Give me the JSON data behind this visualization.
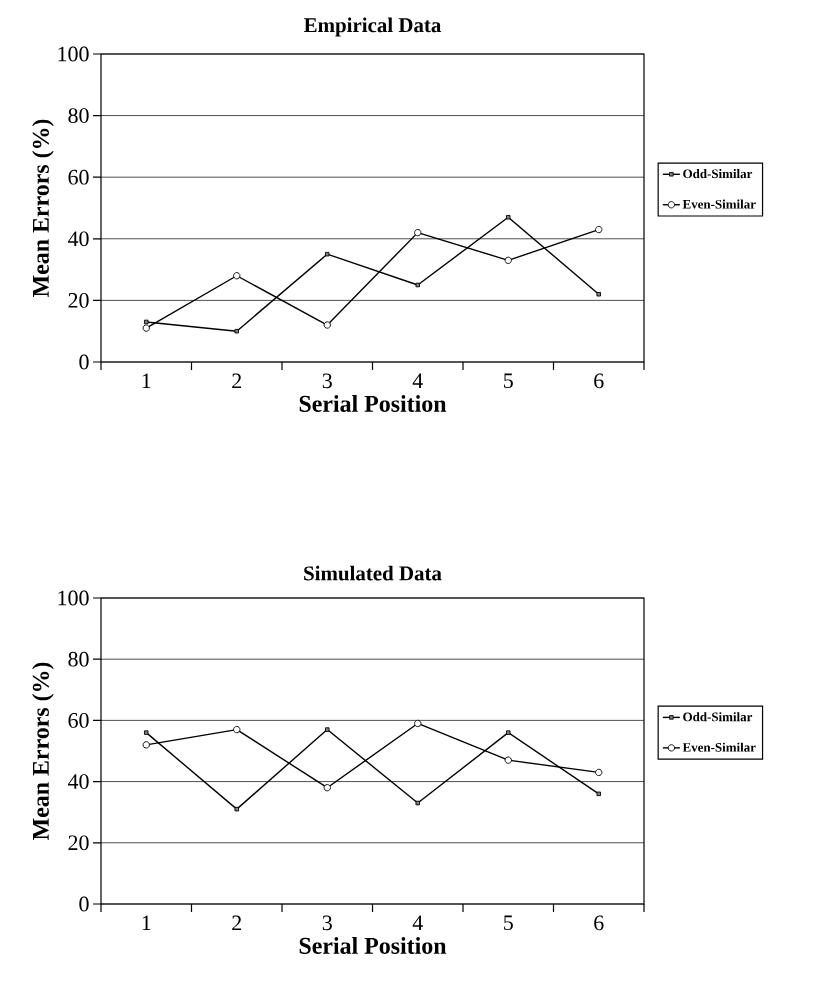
{
  "chart_data": [
    {
      "type": "line",
      "title": "Empirical Data",
      "xlabel": "Serial Position",
      "ylabel": "Mean Errors (%)",
      "categories": [
        "1",
        "2",
        "3",
        "4",
        "5",
        "6"
      ],
      "series": [
        {
          "name": "Odd-Similar",
          "color": "#000000",
          "marker": "square",
          "values": [
            13,
            10,
            35,
            25,
            47,
            22
          ]
        },
        {
          "name": "Even-Similar",
          "color": "#000000",
          "marker": "circle",
          "values": [
            11,
            28,
            12,
            42,
            33,
            43
          ]
        }
      ],
      "ylim": [
        0,
        100
      ],
      "yticks": [
        0,
        20,
        40,
        60,
        80,
        100
      ],
      "grid": "y",
      "legend": "right",
      "line_style": "solid"
    },
    {
      "type": "line",
      "title": "Simulated Data",
      "xlabel": "Serial Position",
      "ylabel": "Mean Errors (%)",
      "categories": [
        "1",
        "2",
        "3",
        "4",
        "5",
        "6"
      ],
      "series": [
        {
          "name": "Odd-Similar",
          "color": "#000000",
          "marker": "square",
          "values": [
            56,
            31,
            57,
            33,
            56,
            36
          ]
        },
        {
          "name": "Even-Similar",
          "color": "#000000",
          "marker": "circle",
          "values": [
            52,
            57,
            38,
            59,
            47,
            43
          ]
        }
      ],
      "ylim": [
        0,
        100
      ],
      "yticks": [
        0,
        20,
        40,
        60,
        80,
        100
      ],
      "grid": "y",
      "legend": "right",
      "line_style": "solid"
    }
  ]
}
